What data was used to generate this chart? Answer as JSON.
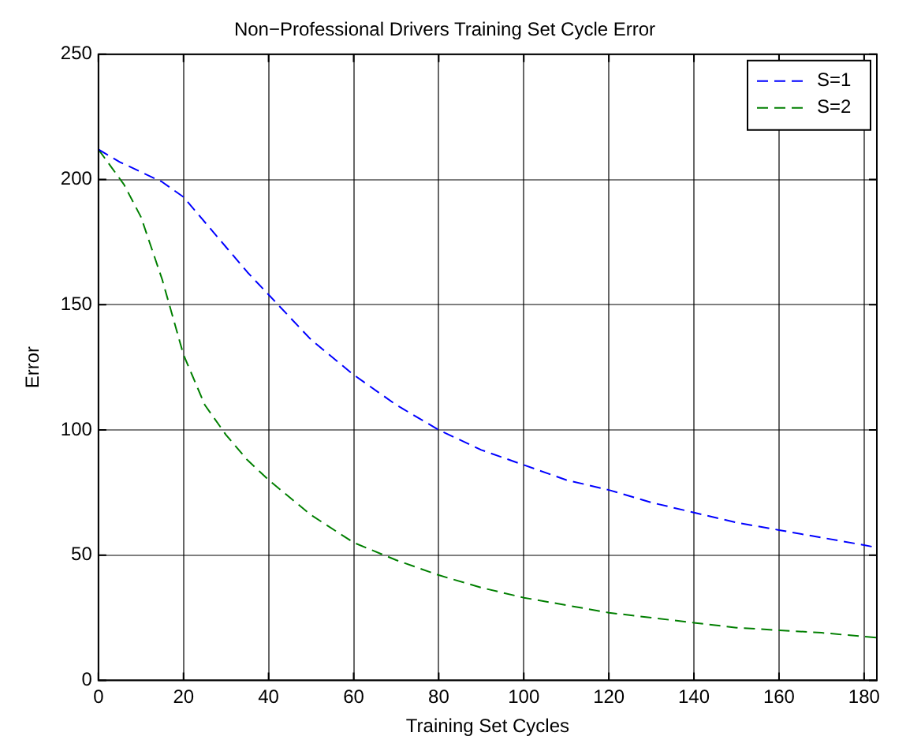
{
  "chart_data": {
    "type": "line",
    "title": "Non−Professional Drivers Training Set Cycle Error",
    "xlabel": "Training Set Cycles",
    "ylabel": "Error",
    "xlim": [
      0,
      183
    ],
    "xticks": [
      0,
      20,
      40,
      60,
      80,
      100,
      120,
      140,
      160,
      180
    ],
    "ylim": [
      0,
      250
    ],
    "yticks": [
      0,
      50,
      100,
      150,
      200,
      250
    ],
    "grid": true,
    "legend": "top right",
    "marker": "none",
    "series": [
      {
        "name": "S=1",
        "color": "#0000ff",
        "line_style": "dashed",
        "x": [
          0,
          5,
          10,
          15,
          20,
          25,
          30,
          35,
          40,
          50,
          60,
          70,
          80,
          90,
          100,
          110,
          120,
          130,
          140,
          150,
          160,
          170,
          180,
          183
        ],
        "values": [
          212,
          207,
          203,
          199,
          193,
          183,
          173,
          163,
          154,
          136,
          122,
          110,
          100,
          92,
          86,
          80,
          76,
          71,
          67,
          63,
          60,
          57,
          54,
          53
        ]
      },
      {
        "name": "S=2",
        "color": "#007f00",
        "line_style": "dashed",
        "x": [
          0,
          3,
          6,
          10,
          15,
          20,
          25,
          30,
          35,
          40,
          50,
          60,
          70,
          80,
          90,
          100,
          110,
          120,
          130,
          140,
          150,
          160,
          170,
          183
        ],
        "values": [
          212,
          205,
          198,
          185,
          160,
          130,
          110,
          98,
          88,
          80,
          66,
          55,
          48,
          42,
          37,
          33,
          30,
          27,
          25,
          23,
          21,
          20,
          19,
          17
        ]
      }
    ]
  }
}
